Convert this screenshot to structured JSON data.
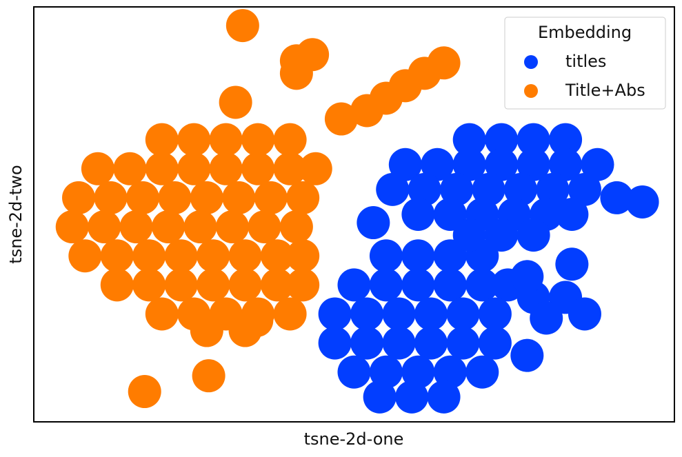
{
  "chart_data": {
    "type": "scatter",
    "x_label": "tsne-2d-one",
    "y_label": "tsne-2d-two",
    "xlim": [
      0,
      100
    ],
    "ylim": [
      0,
      100
    ],
    "legend_title": "Embedding",
    "legend_position": "upper right",
    "series": [
      {
        "name": "titles",
        "color": "#023eff",
        "x": [
          55,
          60,
          65,
          70,
          50,
          55,
          60,
          65,
          70,
          74,
          47,
          52,
          57,
          62,
          67,
          72,
          47,
          52,
          57,
          62,
          67,
          72,
          50,
          55,
          60,
          65,
          70,
          54,
          59,
          64,
          68,
          73,
          78,
          83,
          58,
          63,
          68,
          73,
          78,
          83,
          88,
          56,
          61,
          66,
          71,
          76,
          81,
          86,
          60,
          65,
          70,
          75,
          80,
          84,
          68,
          73,
          78,
          91,
          95,
          78,
          83,
          86,
          80,
          77,
          53,
          84,
          77
        ],
        "y": [
          40,
          40,
          40,
          40,
          33,
          33,
          33,
          33,
          33,
          33,
          26,
          26,
          26,
          26,
          26,
          26,
          19,
          19,
          19,
          19,
          19,
          19,
          12,
          12,
          12,
          12,
          12,
          6,
          6,
          6,
          68,
          68,
          68,
          68,
          62,
          62,
          62,
          62,
          62,
          62,
          62,
          56,
          56,
          56,
          56,
          56,
          56,
          56,
          50,
          50,
          50,
          50,
          50,
          50,
          45,
          45,
          45,
          54,
          53,
          30,
          30,
          26,
          25,
          35,
          48,
          38,
          16
        ]
      },
      {
        "name": "Title+Abs",
        "color": "#ff7c00",
        "x": [
          20,
          25,
          30,
          35,
          40,
          10,
          15,
          20,
          25,
          30,
          35,
          40,
          44,
          7,
          12,
          17,
          22,
          27,
          32,
          37,
          42,
          6,
          11,
          16,
          21,
          26,
          31,
          36,
          41,
          8,
          13,
          18,
          23,
          28,
          33,
          38,
          42,
          13,
          18,
          23,
          28,
          33,
          38,
          42,
          20,
          25,
          30,
          35,
          40,
          27,
          33,
          48,
          52,
          55,
          58,
          61,
          64,
          41,
          43.5,
          41,
          31.5,
          32.6,
          17.3,
          27.3,
          34.8
        ],
        "y": [
          68,
          68,
          68,
          68,
          68,
          61,
          61,
          61,
          61,
          61,
          61,
          61,
          61,
          54,
          54,
          54,
          54,
          54,
          54,
          54,
          54,
          47,
          47,
          47,
          47,
          47,
          47,
          47,
          47,
          40,
          40,
          40,
          40,
          40,
          40,
          40,
          40,
          33,
          33,
          33,
          33,
          33,
          33,
          33,
          26,
          26,
          26,
          26,
          26,
          22,
          22,
          73,
          75,
          78,
          81,
          84,
          86.5,
          87,
          88.5,
          84,
          77,
          95.5,
          7.3,
          11.1,
          24.4
        ]
      }
    ]
  }
}
